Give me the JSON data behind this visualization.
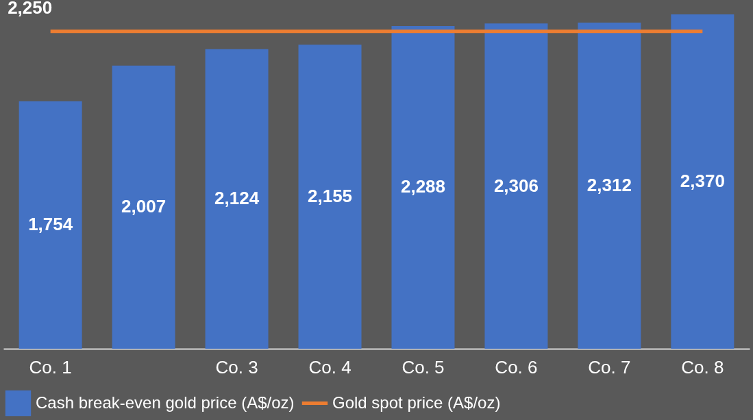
{
  "chart_data": {
    "type": "bar",
    "categories": [
      "Co. 1",
      null,
      "Co. 3",
      "Co. 4",
      "Co. 5",
      "Co. 6",
      "Co. 7",
      "Co. 8"
    ],
    "series": [
      {
        "name": "Cash break-even gold price (A$/oz)",
        "color": "#4472c4",
        "values": [
          1754,
          2007,
          2124,
          2155,
          2288,
          2306,
          2312,
          2370
        ],
        "value_labels": [
          "1,754",
          "2,007",
          "2,124",
          "2,155",
          "2,288",
          "2,306",
          "2,312",
          "2,370"
        ]
      },
      {
        "name": "Gold spot price (A$/oz)",
        "type": "line",
        "color": "#ed7d31",
        "values": [
          2250,
          2250,
          2250,
          2250,
          2250,
          2250,
          2250,
          2250
        ],
        "value_labels": [
          "2,250",
          null,
          null,
          null,
          null,
          null,
          null,
          null
        ]
      }
    ],
    "tick_labels": "x",
    "grid": false,
    "legend": "bottom"
  }
}
